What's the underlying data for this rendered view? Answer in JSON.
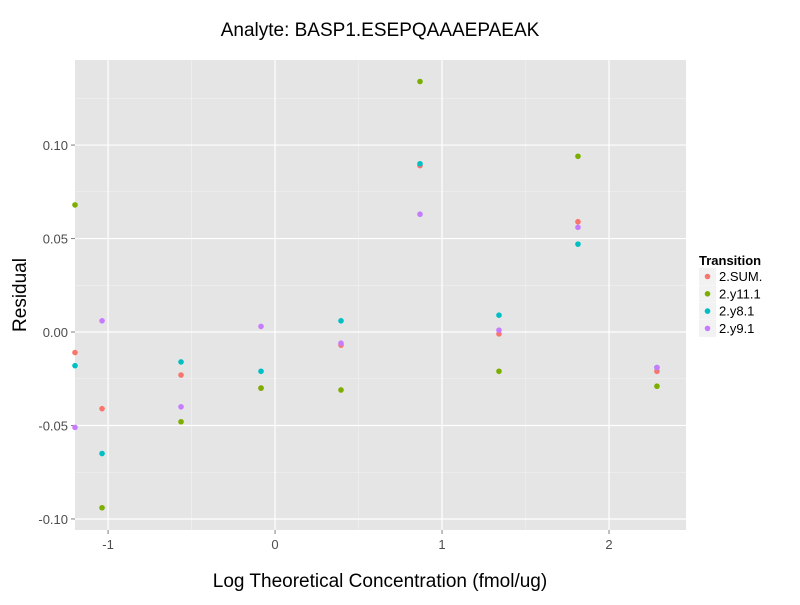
{
  "chart_data": {
    "type": "scatter",
    "title": "Analyte: BASP1.ESEPQAAAEPAEAK",
    "xlabel": "Log Theoretical Concentration (fmol/ug)",
    "ylabel": "Residual",
    "xlim": [
      -1.198,
      2.461
    ],
    "ylim": [
      -0.1059,
      0.1455
    ],
    "xticks": [
      -1,
      0,
      1,
      2
    ],
    "xtick_labels": [
      "-1",
      "0",
      "1",
      "2"
    ],
    "yticks": [
      -0.1,
      -0.05,
      0,
      0.05,
      0.1
    ],
    "ytick_labels": [
      "-0.10",
      "-0.05",
      "0.00",
      "0.05",
      "0.10"
    ],
    "grid": true,
    "legend": {
      "title": "Transition",
      "placement": "right"
    },
    "x": [
      -1.198,
      -1.036,
      -0.563,
      -0.084,
      0.395,
      0.868,
      1.341,
      1.814,
      2.287
    ],
    "series": [
      {
        "name": "2.SUM.",
        "color": "#F8766D",
        "values": [
          -0.011,
          -0.041,
          -0.023,
          -0.03,
          -0.007,
          0.089,
          -0.001,
          0.059,
          -0.021
        ]
      },
      {
        "name": "2.y11.1",
        "color": "#7CAE00",
        "values": [
          0.068,
          -0.094,
          -0.048,
          -0.03,
          -0.031,
          0.134,
          -0.021,
          0.094,
          -0.029
        ]
      },
      {
        "name": "2.y8.1",
        "color": "#00BFC4",
        "values": [
          -0.018,
          -0.065,
          -0.016,
          -0.021,
          0.006,
          0.09,
          0.009,
          0.047,
          -0.019
        ]
      },
      {
        "name": "2.y9.1",
        "color": "#C77CFF",
        "values": [
          -0.051,
          0.006,
          -0.04,
          0.003,
          -0.006,
          0.063,
          0.001,
          0.056,
          -0.019
        ]
      }
    ]
  }
}
